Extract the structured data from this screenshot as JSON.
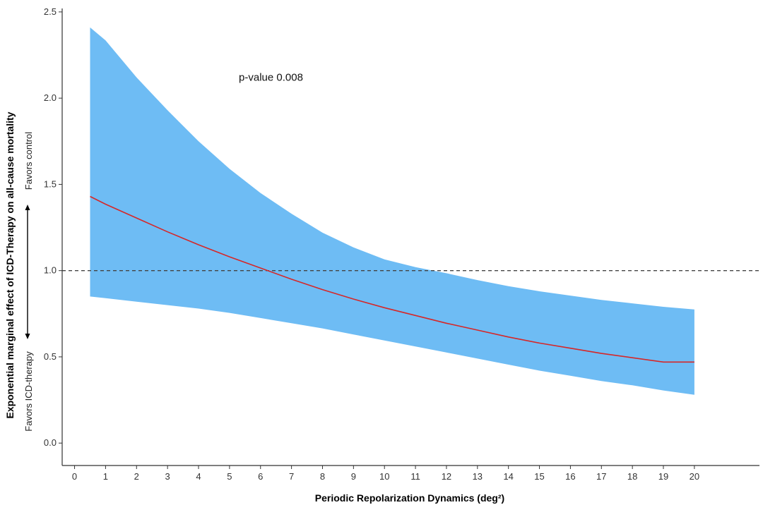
{
  "chart_data": {
    "type": "line",
    "title": "",
    "xlabel": "Periodic Repolarization Dynamics (deg²)",
    "ylabel": "Exponential marginal effect of ICD-Therapy on all-cause mortality",
    "xlim": [
      -0.4,
      22.1
    ],
    "ylim": [
      -0.13,
      2.52
    ],
    "x_ticks": [
      0,
      1,
      2,
      3,
      4,
      5,
      6,
      7,
      8,
      9,
      10,
      11,
      12,
      13,
      14,
      15,
      16,
      17,
      18,
      19,
      20
    ],
    "x_tick_labels": [
      "0",
      "1",
      "2",
      "3",
      "4",
      "5",
      "6",
      "7",
      "8",
      "9",
      "10",
      "11",
      "12",
      "13",
      "14",
      "15",
      "16",
      "17",
      "18",
      "19",
      "20"
    ],
    "y_ticks": [
      0.0,
      0.5,
      1.0,
      1.5,
      2.0,
      2.5
    ],
    "y_tick_labels": [
      "0.0",
      "0.5",
      "1.0",
      "1.5",
      "2.0",
      "2.5"
    ],
    "grid": false,
    "reference_line": {
      "y": 1.0,
      "style": "dashed",
      "color": "#444444"
    },
    "series": [
      {
        "role": "estimate",
        "color": "#d62728",
        "x": [
          0.5,
          1,
          2,
          3,
          4,
          5,
          6,
          7,
          8,
          9,
          10,
          11,
          12,
          13,
          14,
          15,
          16,
          17,
          18,
          19,
          20
        ],
        "y": [
          1.43,
          1.385,
          1.305,
          1.225,
          1.15,
          1.08,
          1.015,
          0.95,
          0.89,
          0.835,
          0.785,
          0.74,
          0.695,
          0.655,
          0.615,
          0.58,
          0.55,
          0.52,
          0.495,
          0.47,
          0.47
        ]
      },
      {
        "role": "confidence_band",
        "color": "#6ebcf4",
        "x": [
          0.5,
          1,
          2,
          3,
          4,
          5,
          6,
          7,
          8,
          9,
          10,
          11,
          12,
          13,
          14,
          15,
          16,
          17,
          18,
          19,
          20
        ],
        "upper": [
          2.41,
          2.335,
          2.12,
          1.93,
          1.75,
          1.59,
          1.45,
          1.33,
          1.22,
          1.135,
          1.065,
          1.02,
          0.985,
          0.945,
          0.91,
          0.88,
          0.855,
          0.83,
          0.81,
          0.79,
          0.775
        ],
        "lower": [
          0.85,
          0.84,
          0.82,
          0.8,
          0.78,
          0.755,
          0.725,
          0.695,
          0.665,
          0.63,
          0.595,
          0.56,
          0.525,
          0.49,
          0.455,
          0.42,
          0.39,
          0.36,
          0.335,
          0.305,
          0.28
        ]
      }
    ],
    "annotations": [
      {
        "text": "p-value 0.008",
        "x": 5.3,
        "y": 2.1
      }
    ],
    "side_notes": {
      "top": "Favors control",
      "bottom": "Favors ICD-therapy"
    }
  },
  "colors": {
    "band": "#6ebcf4",
    "line": "#d62728",
    "axis": "#333333",
    "reference": "#444444"
  }
}
